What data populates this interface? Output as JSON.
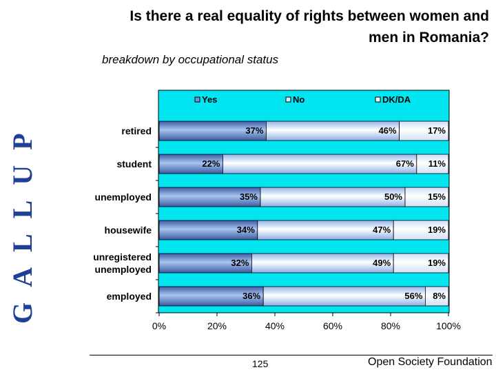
{
  "slide": {
    "vertical_logo": "GALLUP",
    "title_line1": "Is there a real equality of rights between women and",
    "title_line2": "men in Romania?",
    "subtitle": "breakdown by occupational status",
    "page_number": "125",
    "organization": "Open Society Foundation"
  },
  "colors": {
    "plot_background": "#00e5ef",
    "yes": "#6f93d6",
    "no": "#dbe9fb",
    "dkda": "#f5faff",
    "logo": "#1f3f99"
  },
  "chart_data": {
    "type": "bar",
    "orientation": "horizontal",
    "stacked": true,
    "categories": [
      "retired",
      "student",
      "unemployed",
      "housewife",
      "unregistered unemployed",
      "employed"
    ],
    "series": [
      {
        "name": "Yes",
        "values": [
          37,
          22,
          35,
          34,
          32,
          36
        ]
      },
      {
        "name": "No",
        "values": [
          46,
          67,
          50,
          47,
          49,
          56
        ]
      },
      {
        "name": "DK/DA",
        "values": [
          17,
          11,
          15,
          19,
          19,
          8
        ]
      }
    ],
    "xlim": [
      0,
      100
    ],
    "xticks": [
      "0%",
      "20%",
      "40%",
      "60%",
      "80%",
      "100%"
    ],
    "data_labels": [
      [
        "37%",
        "46%",
        "17%"
      ],
      [
        "22%",
        "67%",
        "11%"
      ],
      [
        "35%",
        "50%",
        "15%"
      ],
      [
        "34%",
        "47%",
        "19%"
      ],
      [
        "32%",
        "49%",
        "19%"
      ],
      [
        "36%",
        "56%",
        "8%"
      ]
    ],
    "legend_position": "top",
    "grid": false
  }
}
